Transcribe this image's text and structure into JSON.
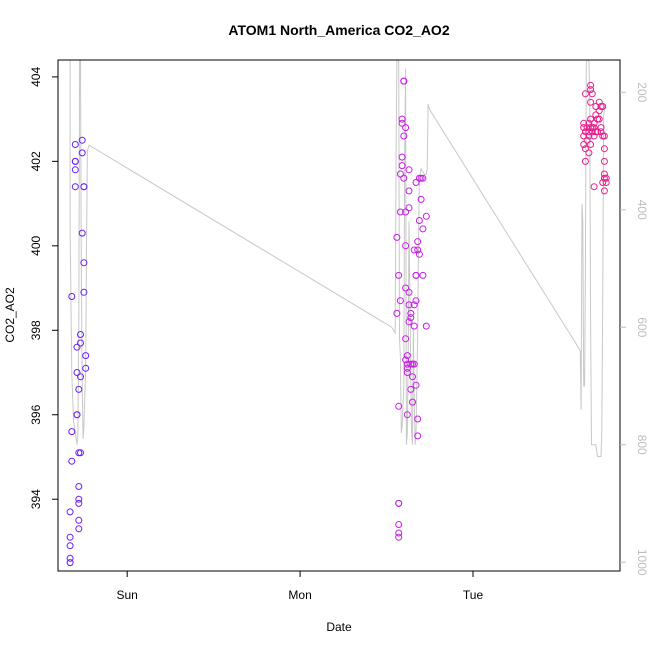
{
  "chart_data": {
    "type": "scatter",
    "title": "ATOM1 North_America CO2_AO2",
    "xlabel": "Date",
    "ylabel": "CO2_AO2",
    "x_tick_labels": [
      "Sun",
      "Mon",
      "Tue"
    ],
    "y_ticks": [
      394,
      396,
      398,
      400,
      402,
      404
    ],
    "ylim": [
      392.3,
      404.4
    ],
    "y2_ticks": [
      200,
      400,
      600,
      800,
      1000
    ],
    "y2lim": [
      1015,
      145
    ],
    "y2_reversed": true,
    "grid": false,
    "legend": "none",
    "colors": {
      "points_low": "#6a1ff5",
      "points_mid": "#c81ee6",
      "points_high": "#e6218c",
      "pressure_line": "#c8c8c8",
      "axis": "#000000",
      "right_axis": "#bdbdbd"
    },
    "series": [
      {
        "marker": "circle",
        "points": [
          [
            -0.33,
            392.5
          ],
          [
            -0.33,
            392.6
          ],
          [
            -0.33,
            392.9
          ],
          [
            -0.33,
            393.1
          ],
          [
            -0.33,
            393.7
          ],
          [
            -0.32,
            394.9
          ],
          [
            -0.32,
            395.6
          ],
          [
            -0.32,
            398.8
          ],
          [
            -0.3,
            401.4
          ],
          [
            -0.3,
            401.8
          ],
          [
            -0.3,
            402.0
          ],
          [
            -0.3,
            402.0
          ],
          [
            -0.3,
            402.4
          ],
          [
            -0.29,
            396.0
          ],
          [
            -0.29,
            396.0
          ],
          [
            -0.29,
            397.0
          ],
          [
            -0.29,
            397.6
          ],
          [
            -0.28,
            395.1
          ],
          [
            -0.28,
            396.6
          ],
          [
            -0.28,
            394.3
          ],
          [
            -0.28,
            394.0
          ],
          [
            -0.28,
            393.9
          ],
          [
            -0.28,
            393.5
          ],
          [
            -0.28,
            393.3
          ],
          [
            -0.27,
            395.1
          ],
          [
            -0.27,
            397.7
          ],
          [
            -0.27,
            397.9
          ],
          [
            -0.27,
            396.9
          ],
          [
            -0.26,
            402.5
          ],
          [
            -0.26,
            402.2
          ],
          [
            -0.26,
            400.3
          ],
          [
            -0.25,
            401.4
          ],
          [
            -0.25,
            401.4
          ],
          [
            -0.25,
            399.6
          ],
          [
            -0.25,
            398.9
          ],
          [
            -0.24,
            397.4
          ],
          [
            -0.24,
            397.1
          ],
          [
            1.56,
            398.4
          ],
          [
            1.56,
            400.2
          ],
          [
            1.57,
            399.3
          ],
          [
            1.57,
            396.2
          ],
          [
            1.57,
            393.9
          ],
          [
            1.57,
            393.9
          ],
          [
            1.57,
            393.4
          ],
          [
            1.57,
            393.2
          ],
          [
            1.57,
            393.1
          ],
          [
            1.58,
            398.7
          ],
          [
            1.58,
            400.8
          ],
          [
            1.58,
            401.7
          ],
          [
            1.59,
            401.9
          ],
          [
            1.59,
            402.1
          ],
          [
            1.59,
            402.9
          ],
          [
            1.59,
            403.0
          ],
          [
            1.6,
            402.6
          ],
          [
            1.6,
            403.9
          ],
          [
            1.6,
            403.9
          ],
          [
            1.6,
            401.6
          ],
          [
            1.61,
            402.8
          ],
          [
            1.61,
            400.8
          ],
          [
            1.61,
            400.0
          ],
          [
            1.61,
            399.0
          ],
          [
            1.61,
            397.8
          ],
          [
            1.61,
            397.3
          ],
          [
            1.62,
            397.1
          ],
          [
            1.62,
            397.0
          ],
          [
            1.62,
            397.2
          ],
          [
            1.62,
            397.4
          ],
          [
            1.62,
            396.0
          ],
          [
            1.63,
            398.6
          ],
          [
            1.63,
            398.2
          ],
          [
            1.63,
            398.9
          ],
          [
            1.63,
            401.3
          ],
          [
            1.63,
            401.8
          ],
          [
            1.63,
            400.9
          ],
          [
            1.64,
            398.3
          ],
          [
            1.64,
            398.4
          ],
          [
            1.64,
            397.2
          ],
          [
            1.64,
            396.6
          ],
          [
            1.65,
            396.3
          ],
          [
            1.65,
            397.2
          ],
          [
            1.65,
            396.9
          ],
          [
            1.66,
            398.1
          ],
          [
            1.66,
            397.2
          ],
          [
            1.66,
            398.6
          ],
          [
            1.66,
            399.9
          ],
          [
            1.67,
            399.3
          ],
          [
            1.67,
            401.5
          ],
          [
            1.67,
            399.3
          ],
          [
            1.67,
            398.7
          ],
          [
            1.67,
            396.7
          ],
          [
            1.68,
            395.5
          ],
          [
            1.68,
            395.9
          ],
          [
            1.68,
            399.9
          ],
          [
            1.68,
            400.1
          ],
          [
            1.69,
            400.6
          ],
          [
            1.69,
            401.6
          ],
          [
            1.69,
            399.8
          ],
          [
            1.7,
            401.1
          ],
          [
            1.7,
            401.6
          ],
          [
            1.71,
            400.4
          ],
          [
            1.71,
            401.6
          ],
          [
            1.71,
            399.3
          ],
          [
            1.73,
            400.7
          ],
          [
            1.73,
            398.1
          ],
          [
            2.64,
            402.6
          ],
          [
            2.64,
            402.4
          ],
          [
            2.64,
            402.8
          ],
          [
            2.64,
            402.9
          ],
          [
            2.65,
            402.0
          ],
          [
            2.65,
            402.3
          ],
          [
            2.65,
            403.6
          ],
          [
            2.65,
            402.7
          ],
          [
            2.66,
            402.5
          ],
          [
            2.66,
            402.8
          ],
          [
            2.67,
            402.6
          ],
          [
            2.67,
            402.2
          ],
          [
            2.67,
            402.7
          ],
          [
            2.67,
            402.9
          ],
          [
            2.68,
            402.8
          ],
          [
            2.68,
            403.0
          ],
          [
            2.68,
            403.7
          ],
          [
            2.68,
            403.8
          ],
          [
            2.68,
            403.4
          ],
          [
            2.68,
            402.4
          ],
          [
            2.69,
            403.6
          ],
          [
            2.69,
            402.8
          ],
          [
            2.69,
            402.7
          ],
          [
            2.7,
            402.6
          ],
          [
            2.7,
            402.8
          ],
          [
            2.7,
            401.4
          ],
          [
            2.7,
            402.9
          ],
          [
            2.71,
            403.3
          ],
          [
            2.71,
            403.1
          ],
          [
            2.71,
            402.7
          ],
          [
            2.72,
            403.0
          ],
          [
            2.72,
            402.7
          ],
          [
            2.73,
            403.4
          ],
          [
            2.73,
            403.2
          ],
          [
            2.73,
            403.0
          ],
          [
            2.74,
            402.8
          ],
          [
            2.74,
            403.3
          ],
          [
            2.74,
            402.7
          ],
          [
            2.75,
            403.3
          ],
          [
            2.75,
            401.5
          ],
          [
            2.75,
            402.6
          ],
          [
            2.76,
            402.6
          ],
          [
            2.76,
            402.0
          ],
          [
            2.76,
            401.7
          ],
          [
            2.76,
            402.3
          ],
          [
            2.76,
            401.6
          ],
          [
            2.76,
            401.3
          ],
          [
            2.77,
            401.5
          ],
          [
            2.77,
            401.6
          ]
        ]
      },
      {
        "name": "pressure",
        "axis": "right",
        "style": "line",
        "points": [
          [
            -0.33,
            140
          ],
          [
            -0.33,
            430
          ],
          [
            -0.32,
            680
          ],
          [
            -0.31,
            760
          ],
          [
            -0.3,
            780
          ],
          [
            -0.295,
            790
          ],
          [
            -0.29,
            800
          ],
          [
            -0.285,
            780
          ],
          [
            -0.28,
            600
          ],
          [
            -0.275,
            140
          ],
          [
            -0.27,
            140
          ],
          [
            -0.265,
            500
          ],
          [
            -0.26,
            700
          ],
          [
            -0.255,
            790
          ],
          [
            -0.25,
            770
          ],
          [
            -0.245,
            720
          ],
          [
            -0.24,
            670
          ],
          [
            -0.235,
            460
          ],
          [
            -0.23,
            300
          ],
          [
            -0.22,
            290
          ],
          [
            1.53,
            600
          ],
          [
            1.55,
            610
          ],
          [
            1.555,
            300
          ],
          [
            1.56,
            140
          ],
          [
            1.57,
            140
          ],
          [
            1.575,
            620
          ],
          [
            1.58,
            650
          ],
          [
            1.585,
            780
          ],
          [
            1.59,
            770
          ],
          [
            1.6,
            700
          ],
          [
            1.605,
            300
          ],
          [
            1.61,
            160
          ],
          [
            1.615,
            800
          ],
          [
            1.62,
            780
          ],
          [
            1.625,
            650
          ],
          [
            1.63,
            420
          ],
          [
            1.64,
            680
          ],
          [
            1.645,
            780
          ],
          [
            1.65,
            800
          ],
          [
            1.655,
            600
          ],
          [
            1.66,
            720
          ],
          [
            1.665,
            800
          ],
          [
            1.67,
            780
          ],
          [
            1.68,
            610
          ],
          [
            1.685,
            450
          ],
          [
            1.69,
            350
          ],
          [
            1.7,
            330
          ],
          [
            1.72,
            340
          ],
          [
            1.73,
            340
          ],
          [
            1.735,
            330
          ],
          [
            1.74,
            220
          ],
          [
            1.75,
            230
          ],
          [
            2.6,
            630
          ],
          [
            2.62,
            640
          ],
          [
            2.625,
            740
          ],
          [
            2.63,
            390
          ],
          [
            2.635,
            420
          ],
          [
            2.64,
            700
          ],
          [
            2.645,
            700
          ],
          [
            2.65,
            500
          ],
          [
            2.655,
            150
          ],
          [
            2.66,
            140
          ],
          [
            2.67,
            140
          ],
          [
            2.675,
            200
          ],
          [
            2.68,
            600
          ],
          [
            2.685,
            800
          ],
          [
            2.7,
            800
          ],
          [
            2.71,
            800
          ],
          [
            2.72,
            820
          ],
          [
            2.73,
            820
          ],
          [
            2.74,
            820
          ],
          [
            2.745,
            780
          ],
          [
            2.75,
            560
          ],
          [
            2.755,
            240
          ],
          [
            2.76,
            230
          ],
          [
            2.765,
            220
          ]
        ]
      }
    ]
  }
}
